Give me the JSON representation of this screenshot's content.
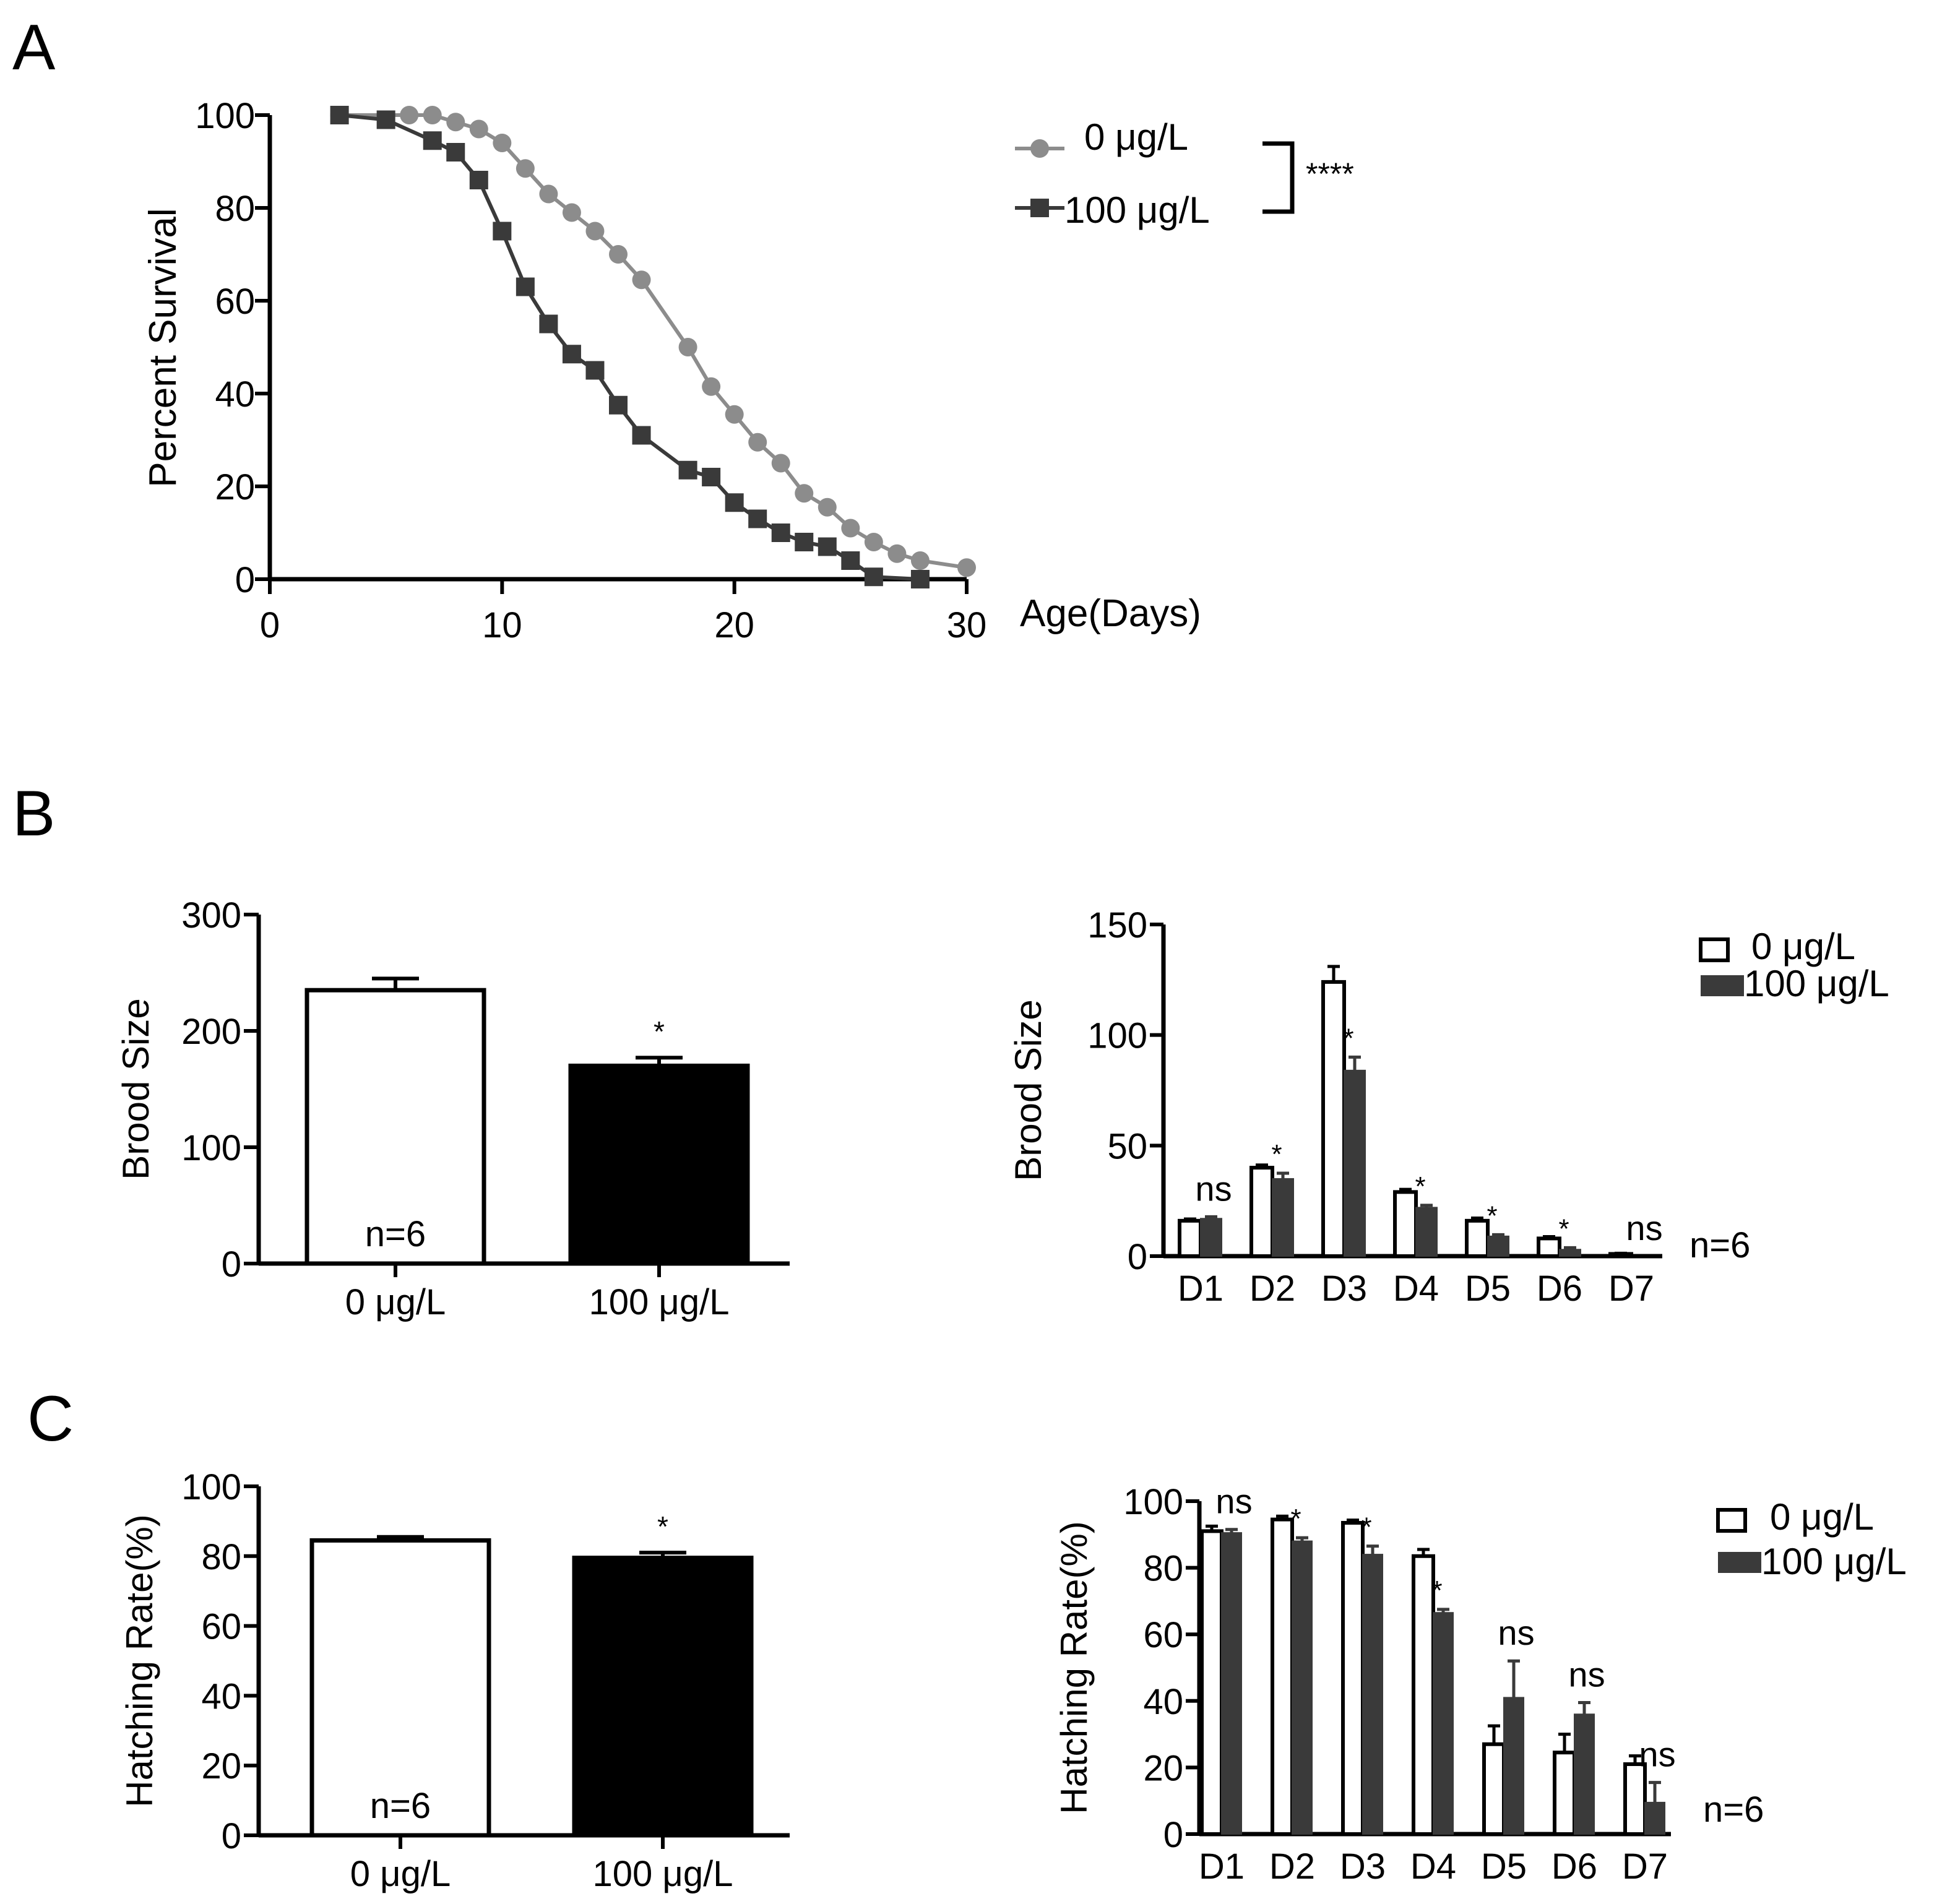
{
  "colors": {
    "control": "#8c8c8c",
    "treated": "#3a3a3a",
    "bar_black": "#000000",
    "bar_dark": "#3a3a3a",
    "axis": "#000000"
  },
  "panels": {
    "A": {
      "label": "A"
    },
    "B": {
      "label": "B"
    },
    "C": {
      "label": "C"
    }
  },
  "chart_data": [
    {
      "id": "A",
      "type": "line",
      "title": "",
      "xlabel": "Age(Days)",
      "ylabel": "Percent Survival",
      "xlim": [
        0,
        30
      ],
      "ylim": [
        0,
        100
      ],
      "xticks": [
        0,
        10,
        20,
        30
      ],
      "yticks": [
        0,
        20,
        40,
        60,
        80,
        100
      ],
      "series": [
        {
          "name": "0 μg/L",
          "marker": "circle",
          "x": [
            3,
            6,
            7,
            8,
            9,
            10,
            11,
            12,
            13,
            14,
            15,
            16,
            18,
            19,
            20,
            21,
            22,
            23,
            24,
            25,
            26,
            27,
            28,
            30
          ],
          "y": [
            100,
            100,
            100,
            98.5,
            97,
            94,
            88.5,
            83,
            79,
            75,
            70,
            64.5,
            50,
            41.5,
            35.5,
            29.5,
            25,
            18.5,
            15.5,
            11,
            8,
            5.5,
            4,
            2.5
          ]
        },
        {
          "name": "100 μg/L",
          "marker": "square",
          "x": [
            3,
            5,
            7,
            8,
            9,
            10,
            11,
            12,
            13,
            14,
            15,
            16,
            18,
            19,
            20,
            21,
            22,
            23,
            24,
            25,
            26,
            28
          ],
          "y": [
            100,
            99,
            94.5,
            92,
            86,
            75,
            63,
            55,
            48.5,
            45,
            37.5,
            31,
            23.5,
            22,
            16.5,
            13,
            10,
            8,
            7,
            4,
            0.5,
            0
          ]
        }
      ],
      "annotation": "****"
    },
    {
      "id": "B-left",
      "type": "bar",
      "ylabel": "Brood Size",
      "ylim": [
        0,
        300
      ],
      "yticks": [
        0,
        100,
        200,
        300
      ],
      "categories": [
        "0 μg/L",
        "100 μg/L"
      ],
      "values": [
        235,
        170
      ],
      "errors": [
        10,
        7
      ],
      "n_labels": [
        "n=6",
        "n=6"
      ],
      "significance": [
        "",
        "*"
      ]
    },
    {
      "id": "B-right",
      "type": "bar",
      "ylabel": "Brood Size",
      "ylim": [
        0,
        150
      ],
      "yticks": [
        0,
        50,
        100,
        150
      ],
      "categories": [
        "D1",
        "D2",
        "D3",
        "D4",
        "D5",
        "D6",
        "D7"
      ],
      "series": [
        {
          "name": "0 μg/L",
          "values": [
            16,
            40,
            124,
            29,
            16,
            8,
            1
          ],
          "errors": [
            0.8,
            1.2,
            7,
            1.2,
            1.2,
            0.8,
            0.3
          ]
        },
        {
          "name": "100 μg/L",
          "values": [
            17,
            35,
            84,
            22,
            9,
            3,
            0
          ],
          "errors": [
            0.8,
            2.5,
            6,
            1,
            0.7,
            0.8,
            0
          ]
        }
      ],
      "significance": [
        "ns",
        "*",
        "*",
        "*",
        "*",
        "*",
        "ns"
      ],
      "n_label": "n=6"
    },
    {
      "id": "C-left",
      "type": "bar",
      "ylabel": "Hatching Rate(%)",
      "ylim": [
        0,
        100
      ],
      "yticks": [
        0,
        20,
        40,
        60,
        80,
        100
      ],
      "categories": [
        "0 μg/L",
        "100 μg/L"
      ],
      "values": [
        84.5,
        79.5
      ],
      "errors": [
        1,
        1.5
      ],
      "n_labels": [
        "n=6",
        "n=6"
      ],
      "significance": [
        "",
        "*"
      ]
    },
    {
      "id": "C-right",
      "type": "bar",
      "ylabel": "Hatching Rate(%)",
      "ylim": [
        0,
        100
      ],
      "yticks": [
        0,
        20,
        40,
        60,
        80,
        100
      ],
      "categories": [
        "D1",
        "D2",
        "D3",
        "D4",
        "D5",
        "D6",
        "D7"
      ],
      "series": [
        {
          "name": "0 μg/L",
          "values": [
            91,
            94.5,
            93.5,
            83.5,
            27,
            24.5,
            21
          ],
          "errors": [
            1.5,
            1,
            0.8,
            2,
            5.5,
            5.5,
            2.5
          ]
        },
        {
          "name": "100 μg/L",
          "values": [
            90.5,
            88,
            84,
            66.5,
            41,
            36,
            9.5
          ],
          "errors": [
            1,
            1,
            2.5,
            1,
            11,
            3.5,
            6
          ]
        }
      ],
      "significance": [
        "ns",
        "*",
        "*",
        "*",
        "ns",
        "ns",
        "ns"
      ],
      "n_label": "n=6"
    }
  ]
}
